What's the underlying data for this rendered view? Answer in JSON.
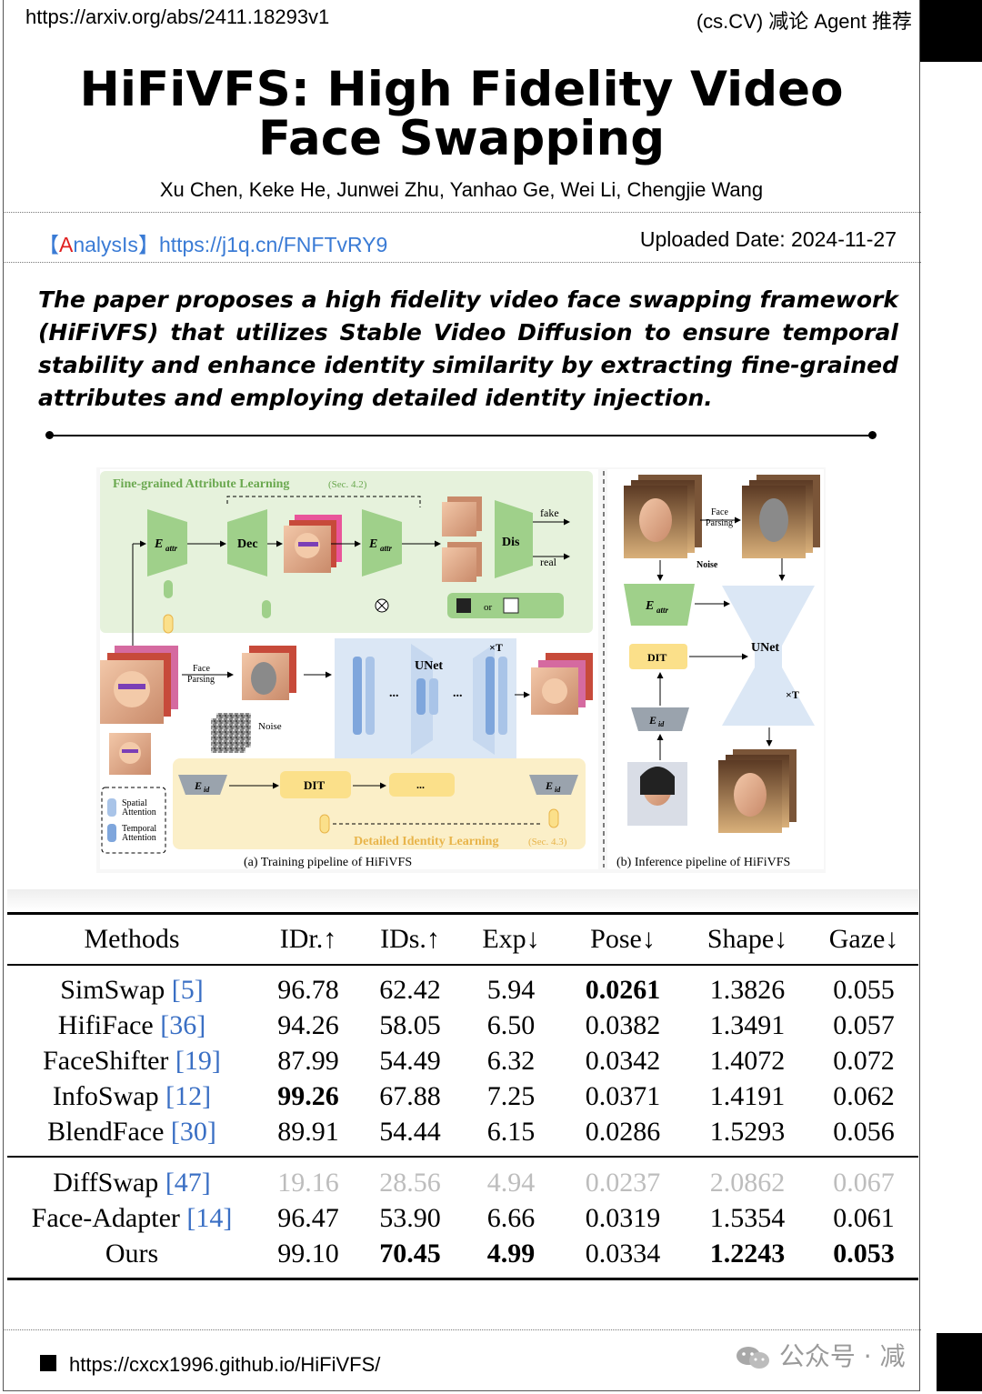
{
  "header": {
    "url": "https://arxiv.org/abs/2411.18293v1",
    "category": "(cs.CV) 减论 Agent 推荐"
  },
  "paper": {
    "title": "HiFiVFS: High Fidelity Video Face Swapping",
    "authors": "Xu Chen, Keke He, Junwei Zhu, Yanhao Ge, Wei Li, Chengjie Wang"
  },
  "analysis": {
    "open_bracket": "【",
    "tag_first": "A",
    "tag_rest": "nalysIs",
    "close_bracket": "】",
    "link": "https://j1q.cn/FNFTvRY9",
    "uploaded": "Uploaded Date: 2024-11-27"
  },
  "summary": "The paper proposes a high fidelity video face swapping framework (HiFiVFS) that utilizes Stable Video Diffusion to ensure temporal stability and enhance identity similarity by extracting fine-grained attributes and employing detailed identity injection.",
  "figure": {
    "section_a_title": "Fine-grained Attribute Learning",
    "section_a_ref": "(Sec. 4.2)",
    "section_b_title": "Detailed Identity Learning",
    "section_b_ref": "(Sec. 4.3)",
    "caption_a": "(a) Training pipeline of HiFiVFS",
    "caption_b": "(b) Inference pipeline of HiFiVFS",
    "labels": {
      "e_attr": "E",
      "e_attr_sub": "attr",
      "dec": "Dec",
      "dis": "Dis",
      "fake": "fake",
      "real": "real",
      "unet": "UNet",
      "times_t": "×T",
      "dit": "DIT",
      "noise": "Noise",
      "face_parsing_1": "Face",
      "face_parsing_2": "Parsing",
      "or": "or",
      "e_id": "E",
      "e_id_sub": "id",
      "legend_spatial_1": "Spatial",
      "legend_spatial_2": "Attention",
      "legend_temporal_1": "Temporal",
      "legend_temporal_2": "Attention",
      "ellipsis": "..."
    }
  },
  "table": {
    "columns": [
      "Methods",
      "IDr.↑",
      "IDs.↑",
      "Exp↓",
      "Pose↓",
      "Shape↓",
      "Gaze↓"
    ],
    "rows": [
      {
        "method": "SimSwap ",
        "ref": "[5]",
        "values": [
          "96.78",
          "62.42",
          "5.94",
          "0.0261",
          "1.3826",
          "0.055"
        ],
        "bold": [
          false,
          false,
          false,
          true,
          false,
          false
        ],
        "faint": false
      },
      {
        "method": "HifiFace ",
        "ref": "[36]",
        "values": [
          "94.26",
          "58.05",
          "6.50",
          "0.0382",
          "1.3491",
          "0.057"
        ],
        "bold": [
          false,
          false,
          false,
          false,
          false,
          false
        ],
        "faint": false
      },
      {
        "method": "FaceShifter ",
        "ref": "[19]",
        "values": [
          "87.99",
          "54.49",
          "6.32",
          "0.0342",
          "1.4072",
          "0.072"
        ],
        "bold": [
          false,
          false,
          false,
          false,
          false,
          false
        ],
        "faint": false
      },
      {
        "method": "InfoSwap ",
        "ref": "[12]",
        "values": [
          "99.26",
          "67.88",
          "7.25",
          "0.0371",
          "1.4191",
          "0.062"
        ],
        "bold": [
          true,
          false,
          false,
          false,
          false,
          false
        ],
        "faint": false
      },
      {
        "method": "BlendFace ",
        "ref": "[30]",
        "values": [
          "89.91",
          "54.44",
          "6.15",
          "0.0286",
          "1.5293",
          "0.056"
        ],
        "bold": [
          false,
          false,
          false,
          false,
          false,
          false
        ],
        "faint": false
      },
      {
        "method": "DiffSwap ",
        "ref": "[47]",
        "values": [
          "19.16",
          "28.56",
          "4.94",
          "0.0237",
          "2.0862",
          "0.067"
        ],
        "bold": [
          false,
          false,
          false,
          false,
          false,
          false
        ],
        "faint": true
      },
      {
        "method": "Face-Adapter ",
        "ref": "[14]",
        "values": [
          "96.47",
          "53.90",
          "6.66",
          "0.0319",
          "1.5354",
          "0.061"
        ],
        "bold": [
          false,
          false,
          false,
          false,
          false,
          false
        ],
        "faint": false
      },
      {
        "method": "Ours",
        "ref": "",
        "values": [
          "99.10",
          "70.45",
          "4.99",
          "0.0334",
          "1.2243",
          "0.053"
        ],
        "bold": [
          false,
          true,
          true,
          false,
          true,
          true
        ],
        "faint": false
      }
    ]
  },
  "footer": {
    "url": "https://cxcx1996.github.io/HiFiVFS/",
    "watermark": "公众号 · 减"
  },
  "colors": {
    "attr_green": "#9fd08a",
    "attr_bg": "#e6f2dc",
    "id_bg": "#fbefc8",
    "unet_bg": "#dbe7f5",
    "unet_blue": "#7fa6dc",
    "dit_yellow": "#fbe08a",
    "eid_gray": "#9aa3ad",
    "link_blue": "#3a7bd5",
    "accent_red": "#e02020"
  }
}
